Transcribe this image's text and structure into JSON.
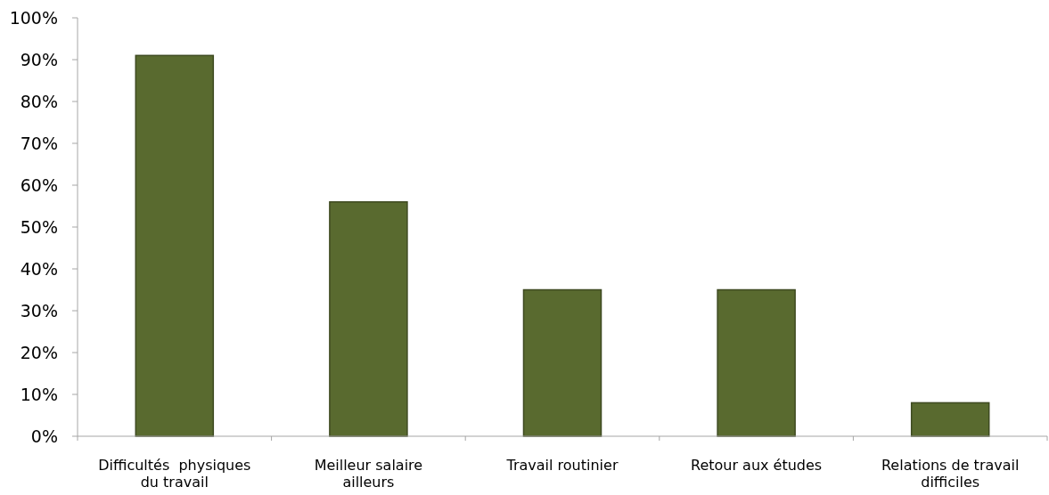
{
  "chart_data": {
    "type": "bar",
    "categories": [
      "Difficultés  physiques du travail",
      "Meilleur salaire ailleurs",
      "Travail routinier",
      "Retour aux études",
      "Relations de travail difficiles"
    ],
    "values": [
      91,
      56,
      35,
      35,
      8
    ],
    "color": "#596a2f",
    "ylim": [
      0,
      100
    ],
    "yticks": [
      {
        "value": 0,
        "label": "0%"
      },
      {
        "value": 10,
        "label": "10%"
      },
      {
        "value": 20,
        "label": "20%"
      },
      {
        "value": 30,
        "label": "30%"
      },
      {
        "value": 40,
        "label": "40%"
      },
      {
        "value": 50,
        "label": "50%"
      },
      {
        "value": 60,
        "label": "60%"
      },
      {
        "value": 70,
        "label": "70%"
      },
      {
        "value": 80,
        "label": "80%"
      },
      {
        "value": 90,
        "label": "90%"
      },
      {
        "value": 100,
        "label": "100%"
      }
    ]
  }
}
